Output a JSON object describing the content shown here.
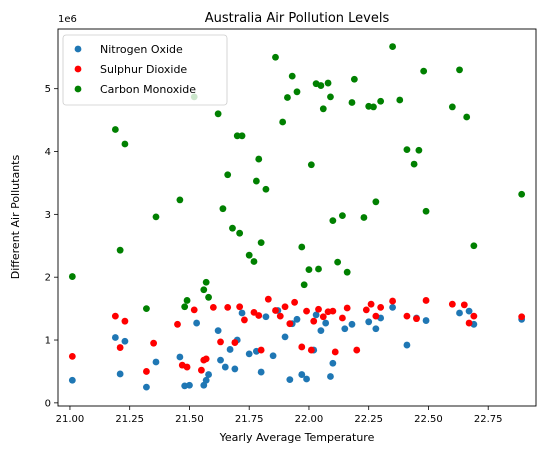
{
  "chart_data": {
    "type": "scatter",
    "title": "Australia Air Pollution Levels",
    "xlabel": "Yearly Average Temperature",
    "ylabel": "Different Air Pollutants",
    "y_offset_text": "1e6",
    "xlim": [
      20.95,
      22.95
    ],
    "ylim": [
      -0.05,
      5.95
    ],
    "x_ticks": [
      21.0,
      21.25,
      21.5,
      21.75,
      22.0,
      22.25,
      22.5,
      22.75
    ],
    "x_tick_labels": [
      "21.00",
      "21.25",
      "21.50",
      "21.75",
      "22.00",
      "22.25",
      "22.50",
      "22.75"
    ],
    "y_ticks": [
      0,
      1,
      2,
      3,
      4,
      5
    ],
    "y_tick_labels": [
      "0",
      "1",
      "2",
      "3",
      "4",
      "5"
    ],
    "grid": false,
    "legend_position": "upper-left",
    "series": [
      {
        "name": "Nitrogen Oxide",
        "color": "#1f77b4",
        "points": [
          [
            21.01,
            0.36
          ],
          [
            21.19,
            1.04
          ],
          [
            21.21,
            0.46
          ],
          [
            21.23,
            0.98
          ],
          [
            21.32,
            0.25
          ],
          [
            21.36,
            0.65
          ],
          [
            21.46,
            0.73
          ],
          [
            21.48,
            0.27
          ],
          [
            21.5,
            0.28
          ],
          [
            21.53,
            1.27
          ],
          [
            21.56,
            0.28
          ],
          [
            21.57,
            0.36
          ],
          [
            21.58,
            0.45
          ],
          [
            21.62,
            1.15
          ],
          [
            21.63,
            0.68
          ],
          [
            21.65,
            0.57
          ],
          [
            21.67,
            0.85
          ],
          [
            21.69,
            0.54
          ],
          [
            21.7,
            1.0
          ],
          [
            21.72,
            1.43
          ],
          [
            21.75,
            0.78
          ],
          [
            21.78,
            0.82
          ],
          [
            21.8,
            0.49
          ],
          [
            21.82,
            1.37
          ],
          [
            21.85,
            0.75
          ],
          [
            21.87,
            1.47
          ],
          [
            21.9,
            1.05
          ],
          [
            21.92,
            0.37
          ],
          [
            21.93,
            1.26
          ],
          [
            21.95,
            1.33
          ],
          [
            21.97,
            0.45
          ],
          [
            21.99,
            0.38
          ],
          [
            22.02,
            0.84
          ],
          [
            22.03,
            1.4
          ],
          [
            22.05,
            1.15
          ],
          [
            22.07,
            1.27
          ],
          [
            22.09,
            0.42
          ],
          [
            22.1,
            0.63
          ],
          [
            22.15,
            1.18
          ],
          [
            22.18,
            1.25
          ],
          [
            22.25,
            1.29
          ],
          [
            22.28,
            1.18
          ],
          [
            22.3,
            1.35
          ],
          [
            22.35,
            1.52
          ],
          [
            22.41,
            0.92
          ],
          [
            22.45,
            1.35
          ],
          [
            22.49,
            1.31
          ],
          [
            22.63,
            1.43
          ],
          [
            22.67,
            1.46
          ],
          [
            22.69,
            1.25
          ],
          [
            22.89,
            1.33
          ]
        ]
      },
      {
        "name": "Sulphur Dioxide",
        "color": "#ff0000",
        "points": [
          [
            21.01,
            0.74
          ],
          [
            21.19,
            1.38
          ],
          [
            21.21,
            0.88
          ],
          [
            21.23,
            1.3
          ],
          [
            21.32,
            0.5
          ],
          [
            21.35,
            0.95
          ],
          [
            21.45,
            1.25
          ],
          [
            21.47,
            0.6
          ],
          [
            21.49,
            0.57
          ],
          [
            21.52,
            1.48
          ],
          [
            21.55,
            0.52
          ],
          [
            21.56,
            0.68
          ],
          [
            21.57,
            0.7
          ],
          [
            21.6,
            1.52
          ],
          [
            21.63,
            0.97
          ],
          [
            21.66,
            1.52
          ],
          [
            21.69,
            0.96
          ],
          [
            21.71,
            1.53
          ],
          [
            21.73,
            1.32
          ],
          [
            21.77,
            1.44
          ],
          [
            21.79,
            1.39
          ],
          [
            21.8,
            0.84
          ],
          [
            21.83,
            1.65
          ],
          [
            21.86,
            1.47
          ],
          [
            21.88,
            1.38
          ],
          [
            21.9,
            1.53
          ],
          [
            21.92,
            1.26
          ],
          [
            21.94,
            1.6
          ],
          [
            21.97,
            0.89
          ],
          [
            21.99,
            1.46
          ],
          [
            22.01,
            0.84
          ],
          [
            22.02,
            1.3
          ],
          [
            22.04,
            1.49
          ],
          [
            22.06,
            1.37
          ],
          [
            22.08,
            1.45
          ],
          [
            22.1,
            1.46
          ],
          [
            22.11,
            0.81
          ],
          [
            22.14,
            1.35
          ],
          [
            22.16,
            1.51
          ],
          [
            22.2,
            0.84
          ],
          [
            22.24,
            1.48
          ],
          [
            22.26,
            1.57
          ],
          [
            22.28,
            1.38
          ],
          [
            22.3,
            1.52
          ],
          [
            22.35,
            1.62
          ],
          [
            22.41,
            1.38
          ],
          [
            22.45,
            1.34
          ],
          [
            22.49,
            1.63
          ],
          [
            22.6,
            1.57
          ],
          [
            22.65,
            1.56
          ],
          [
            22.67,
            1.27
          ],
          [
            22.69,
            1.38
          ],
          [
            22.89,
            1.37
          ]
        ]
      },
      {
        "name": "Carbon Monoxide",
        "color": "#008000",
        "points": [
          [
            21.01,
            2.01
          ],
          [
            21.19,
            4.35
          ],
          [
            21.21,
            2.43
          ],
          [
            21.23,
            4.12
          ],
          [
            21.32,
            1.5
          ],
          [
            21.36,
            2.96
          ],
          [
            21.46,
            3.23
          ],
          [
            21.48,
            1.53
          ],
          [
            21.49,
            1.63
          ],
          [
            21.52,
            4.87
          ],
          [
            21.56,
            1.8
          ],
          [
            21.57,
            1.92
          ],
          [
            21.58,
            1.68
          ],
          [
            21.62,
            4.6
          ],
          [
            21.64,
            3.09
          ],
          [
            21.66,
            3.63
          ],
          [
            21.68,
            2.78
          ],
          [
            21.7,
            4.25
          ],
          [
            21.71,
            2.7
          ],
          [
            21.72,
            4.25
          ],
          [
            21.75,
            2.35
          ],
          [
            21.77,
            2.25
          ],
          [
            21.78,
            3.53
          ],
          [
            21.79,
            3.88
          ],
          [
            21.8,
            2.55
          ],
          [
            21.82,
            3.4
          ],
          [
            21.86,
            5.5
          ],
          [
            21.89,
            4.47
          ],
          [
            21.91,
            4.86
          ],
          [
            21.93,
            5.2
          ],
          [
            21.95,
            4.95
          ],
          [
            21.97,
            2.48
          ],
          [
            21.98,
            1.88
          ],
          [
            22.0,
            2.12
          ],
          [
            22.01,
            3.79
          ],
          [
            22.03,
            5.08
          ],
          [
            22.04,
            2.13
          ],
          [
            22.05,
            5.05
          ],
          [
            22.06,
            4.68
          ],
          [
            22.08,
            5.09
          ],
          [
            22.09,
            4.87
          ],
          [
            22.1,
            2.9
          ],
          [
            22.12,
            2.24
          ],
          [
            22.14,
            2.98
          ],
          [
            22.16,
            2.08
          ],
          [
            22.18,
            4.78
          ],
          [
            22.19,
            5.15
          ],
          [
            22.23,
            2.95
          ],
          [
            22.25,
            4.72
          ],
          [
            22.27,
            4.71
          ],
          [
            22.28,
            3.2
          ],
          [
            22.3,
            4.8
          ],
          [
            22.35,
            5.67
          ],
          [
            22.38,
            4.82
          ],
          [
            22.41,
            4.03
          ],
          [
            22.44,
            3.8
          ],
          [
            22.46,
            4.02
          ],
          [
            22.48,
            5.28
          ],
          [
            22.49,
            3.05
          ],
          [
            22.6,
            4.71
          ],
          [
            22.63,
            5.3
          ],
          [
            22.66,
            4.55
          ],
          [
            22.69,
            2.5
          ],
          [
            22.89,
            3.32
          ]
        ]
      }
    ]
  }
}
